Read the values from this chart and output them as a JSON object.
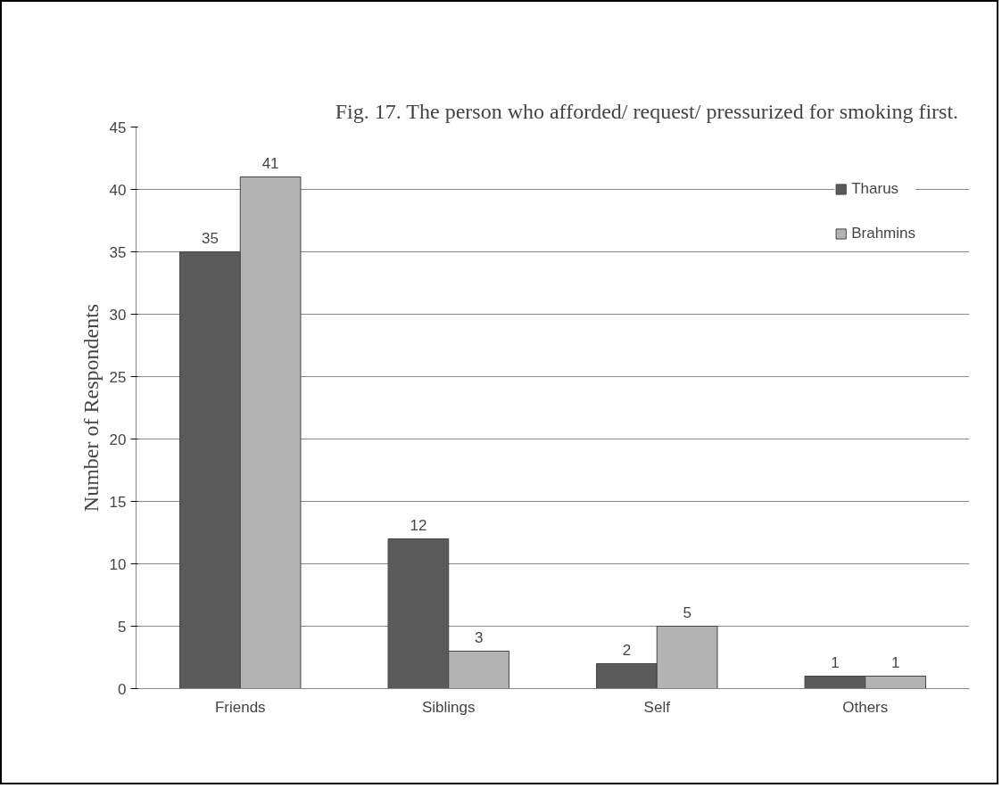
{
  "chart_data": {
    "type": "bar",
    "title": "Fig. 17.   The person who afforded/ request/ pressurized for smoking first.",
    "ylabel": "Number of Respondents",
    "categories": [
      "Friends",
      "Siblings",
      "Self",
      "Others"
    ],
    "series": [
      {
        "name": "Tharus",
        "color": "#5a5a5a",
        "values": [
          35,
          12,
          2,
          1
        ]
      },
      {
        "name": "Brahmins",
        "color": "#b3b3b3",
        "values": [
          41,
          3,
          5,
          1
        ]
      }
    ],
    "ylim": [
      0,
      45
    ],
    "yticks": [
      0,
      5,
      10,
      15,
      20,
      25,
      30,
      35,
      40,
      45
    ],
    "grid": "y",
    "legend": "top right",
    "data_labels": true
  }
}
